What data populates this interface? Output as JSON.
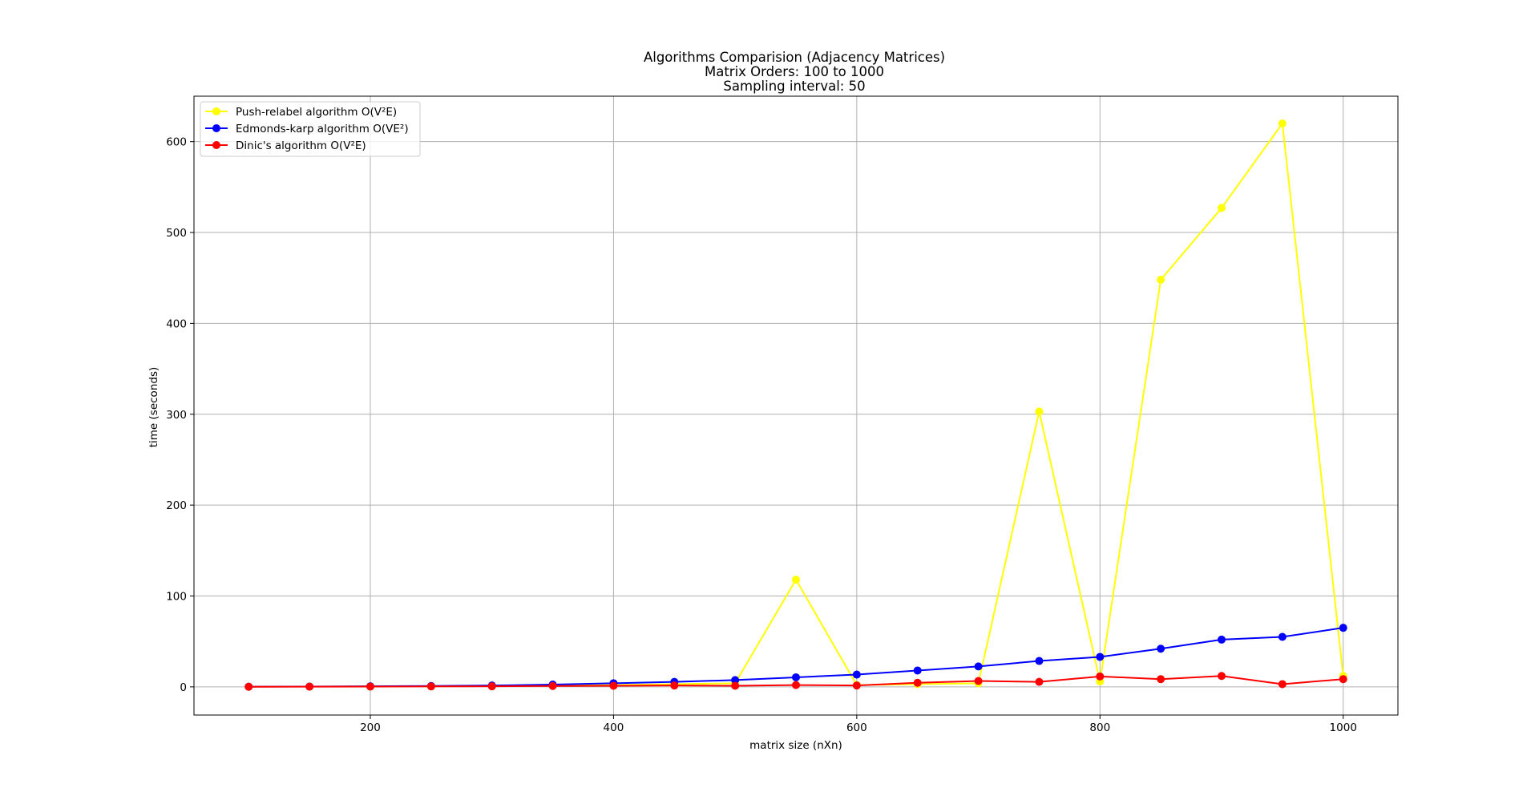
{
  "chart_data": {
    "type": "line",
    "title_lines": [
      "Algorithms Comparision (Adjacency Matrices)",
      "Matrix Orders: 100 to 1000",
      "Sampling interval: 50"
    ],
    "xlabel": "matrix size (nXn)",
    "ylabel": "time (seconds)",
    "xlim": [
      55,
      1045
    ],
    "ylim": [
      -31,
      650
    ],
    "xticks": [
      200,
      400,
      600,
      800,
      1000
    ],
    "yticks": [
      0,
      100,
      200,
      300,
      400,
      500,
      600
    ],
    "grid": true,
    "legend_position": "top-left",
    "x": [
      100,
      150,
      200,
      250,
      300,
      350,
      400,
      450,
      500,
      550,
      600,
      650,
      700,
      750,
      800,
      850,
      900,
      950,
      1000
    ],
    "series": [
      {
        "name": "Push-relabel algorithm O(V²E)",
        "color": "#ffff00",
        "values": [
          0.2,
          0.3,
          0.5,
          0.8,
          1,
          1.5,
          2,
          3,
          4,
          118,
          2,
          3,
          4,
          303,
          6,
          448,
          527,
          620,
          12
        ]
      },
      {
        "name": "Edmonds-karp algorithm O(VE²)",
        "color": "#0000ff",
        "values": [
          0.2,
          0.3,
          0.6,
          1,
          1.5,
          2.5,
          4,
          5.5,
          7.5,
          10.5,
          13.5,
          18,
          22.5,
          28.5,
          33,
          42,
          52,
          55,
          65
        ]
      },
      {
        "name": "Dinic's algorithm O(V²E)",
        "color": "#ff0000",
        "values": [
          0.1,
          0.2,
          0.3,
          0.5,
          0.6,
          1,
          1.2,
          1.5,
          1.2,
          2,
          1.5,
          4.5,
          6.5,
          5.5,
          11.5,
          8.5,
          12,
          3,
          8.5
        ]
      }
    ]
  }
}
